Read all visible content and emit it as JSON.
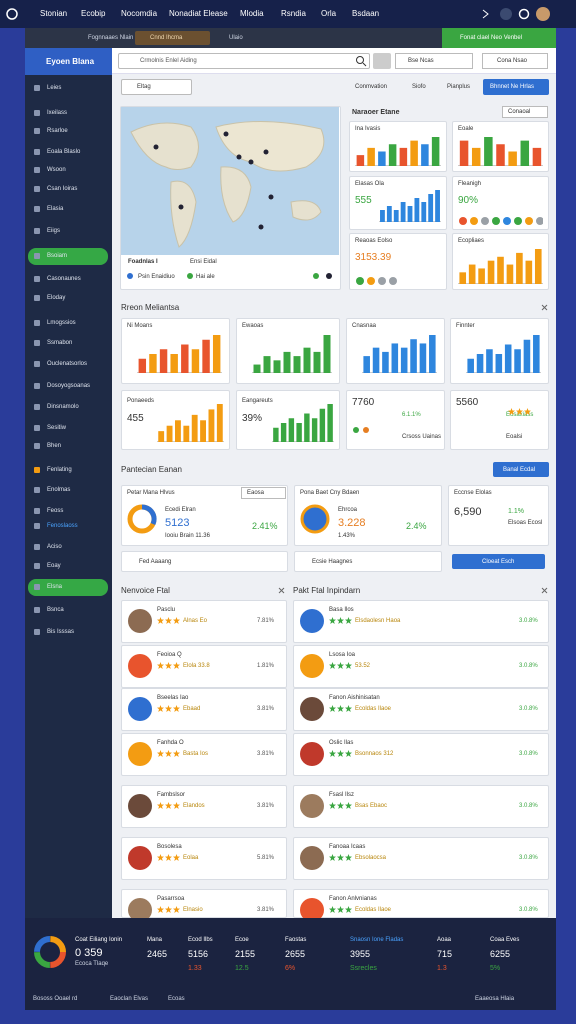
{
  "top_nav": [
    "Stonian",
    "Ecobip",
    "Nocomdia",
    "Nonadiat Elease",
    "Mlodia",
    "Rsndia",
    "Orla",
    "Bsdaan"
  ],
  "browser": {
    "tabs": [
      "Fognnaaes Nlain",
      "Cnnd Ihcma",
      "Ulaio"
    ],
    "banner": "Fonat clael Neo Venbel"
  },
  "sidebar": {
    "brand": "Eyoen Blana",
    "items": [
      {
        "label": "Leies",
        "active": false
      },
      {
        "label": "Ixeilass",
        "active": false
      },
      {
        "label": "Rsarloe",
        "active": false
      },
      {
        "label": "Eoala Blaslo",
        "active": false
      },
      {
        "label": "Wsoon",
        "active": false
      },
      {
        "label": "Csan Ioiras",
        "active": false
      },
      {
        "label": "Elasia",
        "active": false
      },
      {
        "label": "Eiigs",
        "active": false
      },
      {
        "label": "Bsoiam",
        "active": true
      },
      {
        "label": "Casonaunes",
        "active": false
      },
      {
        "label": "Eloday",
        "active": false
      },
      {
        "label": "Lmogssios",
        "active": false
      },
      {
        "label": "Ssmabon",
        "active": false
      },
      {
        "label": "Ouclenatsorlos",
        "active": false
      },
      {
        "label": "Dosoyogsoanas",
        "active": false
      },
      {
        "label": "Dinsnamolo",
        "active": false
      },
      {
        "label": "Sesitiw",
        "active": false
      },
      {
        "label": "Bhen",
        "active": false
      },
      {
        "label": "Fenlating",
        "active": false
      },
      {
        "label": "Enolmas",
        "active": false
      },
      {
        "label": "Feoss",
        "active": false
      },
      {
        "label": "Fenoslaoss",
        "active": false
      },
      {
        "label": "Aciso",
        "active": false
      },
      {
        "label": "Eoay",
        "active": false
      },
      {
        "label": "Elsna",
        "active": true
      },
      {
        "label": "Bsnca",
        "active": false
      },
      {
        "label": "Bis Isssas",
        "active": false
      }
    ]
  },
  "toolbar": {
    "search": "Crmolnis Enlel Aiding",
    "input": "Bse Ncas",
    "button": "Cona Nsao",
    "filter": "Eltag",
    "links": [
      "Conmvation",
      "Siofo",
      "Pianplus"
    ],
    "primary": "Bhnnet Ne Hrlas"
  },
  "map": {
    "title": "Foadnlas I",
    "subtitle": "Ensi Eidal",
    "legend": [
      "Psin Enaidiuo",
      "Hai ale"
    ]
  },
  "overview": {
    "title": "Naraoer Etane",
    "dropdown": "Conaoal",
    "cards": [
      {
        "title": "Ina Ivasis",
        "bars": [
          3,
          5,
          4,
          6,
          5,
          7,
          6,
          8
        ],
        "colors": [
          "#e8542d",
          "#f39c12",
          "#2e86de",
          "#3aa641"
        ]
      },
      {
        "title": "Eoale",
        "bars": [
          7,
          5,
          8,
          6,
          4,
          7,
          5
        ],
        "colors": [
          "#e8542d",
          "#f39c12",
          "#3aa641"
        ]
      },
      {
        "title": "Elasas Ola",
        "value": "555",
        "bars": [
          3,
          4,
          3,
          5,
          4,
          6,
          5,
          7,
          8
        ],
        "colors": [
          "#2e86de"
        ]
      },
      {
        "title": "Fleanigh",
        "value": "90%",
        "dots": [
          "#e8542d",
          "#f39c12",
          "#9aa0a6",
          "#3aa641",
          "#2e86de",
          "#3aa641",
          "#f39c12",
          "#9aa0a6"
        ]
      },
      {
        "title": "Reaoas Eolso",
        "value": "3153.39",
        "dots": [
          "#3aa641",
          "#f39c12",
          "#9aa0a6",
          "#9aa0a6"
        ]
      },
      {
        "title": "Ecopliaes",
        "bars": [
          3,
          5,
          4,
          6,
          7,
          5,
          8,
          6,
          9
        ],
        "colors": [
          "#f39c12"
        ]
      }
    ]
  },
  "metrics": {
    "title": "Rreon Meliantsa",
    "charts": [
      {
        "title": "Ni Moans",
        "bars": [
          3,
          4,
          5,
          4,
          6,
          5,
          7,
          8
        ],
        "colors": [
          "#e8542d",
          "#f39c12"
        ]
      },
      {
        "title": "Ewaoas",
        "bars": [
          2,
          4,
          3,
          5,
          4,
          6,
          5,
          9
        ],
        "colors": [
          "#3aa641"
        ]
      },
      {
        "title": "Cnasnaa",
        "bars": [
          4,
          6,
          5,
          7,
          6,
          8,
          7,
          9
        ],
        "colors": [
          "#2e86de"
        ]
      },
      {
        "title": "Finnter",
        "bars": [
          3,
          4,
          5,
          4,
          6,
          5,
          7,
          8
        ],
        "colors": [
          "#2e86de"
        ]
      }
    ],
    "stats": [
      {
        "title": "Ponaeeds",
        "value": "455",
        "bars": [
          2,
          3,
          4,
          3,
          5,
          4,
          6,
          7
        ],
        "colors": [
          "#f39c12"
        ]
      },
      {
        "title": "Eangareuts",
        "value": "39%",
        "bars": [
          3,
          4,
          5,
          4,
          6,
          5,
          7,
          8
        ],
        "colors": [
          "#3aa641"
        ]
      },
      {
        "title": "7760",
        "value": "6.1.1%",
        "note": "Crsoss Uainas"
      },
      {
        "title": "5560",
        "value": "Eosaxiass",
        "note": "Eoalsi"
      }
    ]
  },
  "planning": {
    "title": "Pantecian Eanan",
    "button": "Banal Ecdal",
    "cards": [
      {
        "title": "Petar Mana Hlvus",
        "dropdown": "Eaosa",
        "label": "Ecedi Elran",
        "value": "5123",
        "change": "2.41%",
        "note": "Iooiu Brain 11.36"
      },
      {
        "title": "Pona Baet Cny Bdaen",
        "label": "Ehrcoa",
        "value": "3.228",
        "change": "2.4%",
        "note": "1.43%"
      },
      {
        "title": "Eccnse Elolas",
        "value": "6,590",
        "change": "1.1%",
        "note": "Elsoas Ecosl"
      }
    ],
    "inputs": [
      "Fed Aaaang",
      "Ecsie Haagnes"
    ],
    "action": "Cloeat Esch"
  },
  "lists": [
    {
      "title": "Nenvoice Ftal",
      "rows": [
        {
          "name": "Pasclu",
          "sub": "Alnas Eo",
          "value": "7.81%"
        },
        {
          "name": "Feoioa Q",
          "sub": "Elola 33.8",
          "value": "1.81%"
        },
        {
          "name": "Bseelas Iao",
          "sub": "Ebaad",
          "value": "3.81%"
        },
        {
          "name": "Fanhda O",
          "sub": "Basta Ios",
          "value": "3.81%"
        },
        {
          "name": "Fambslsor",
          "sub": "Elandos",
          "value": "3.81%"
        },
        {
          "name": "Bosolesa",
          "sub": "Eolaa",
          "value": "5.81%"
        },
        {
          "name": "Pasarrsoa",
          "sub": "Elnasio",
          "value": "3.81%"
        }
      ]
    },
    {
      "title": "Pakt Ftal Inpindarn",
      "rows": [
        {
          "name": "Basa Ilos",
          "sub": "Elsdaolesn Haoa",
          "value": "3.0.8%"
        },
        {
          "name": "Lsosa Ioa",
          "sub": "53.52",
          "value": "3.0.8%"
        },
        {
          "name": "Fanon Aishinisatan",
          "sub": "Ecoldas Ilaoe",
          "value": "3.0.8%"
        },
        {
          "name": "Oslic Ilas",
          "sub": "Bsonnaos 312",
          "value": "3.0.8%"
        },
        {
          "name": "Fsasl Ilsz",
          "sub": "Bsas Ebaoc",
          "value": "3.0.8%"
        },
        {
          "name": "Fanoaa Icaas",
          "sub": "Ebsolaocsa",
          "value": "3.0.8%"
        },
        {
          "name": "Fanon Anlvnianas",
          "sub": "Ecoldas Ilaoe",
          "value": "3.0.8%"
        }
      ]
    }
  ],
  "footer": {
    "title": "Coat Eiliang Ionin",
    "value": "0 359",
    "note": "Ecoca Tlaqe",
    "columns": [
      {
        "label": "Mana",
        "value": "2465"
      },
      {
        "label": "Ecod Ilbs",
        "value": "5156",
        "change": "1.33"
      },
      {
        "label": "Ecoe",
        "value": "2155",
        "change": "12.5"
      },
      {
        "label": "Faostas",
        "value": "2655",
        "change": "6%"
      },
      {
        "label": "Snaosn Ione Fladas",
        "value": "3955",
        "change": "Ssrecles"
      },
      {
        "label": "Aoaa",
        "value": "715",
        "change": "1.3"
      },
      {
        "label": "Coaa Eves",
        "value": "6255",
        "change": "5%"
      }
    ],
    "links": [
      "Bososs Ooael rd",
      "Eaoclan Elvas",
      "Ecoas",
      "Eaaeosa Hlaia"
    ]
  }
}
